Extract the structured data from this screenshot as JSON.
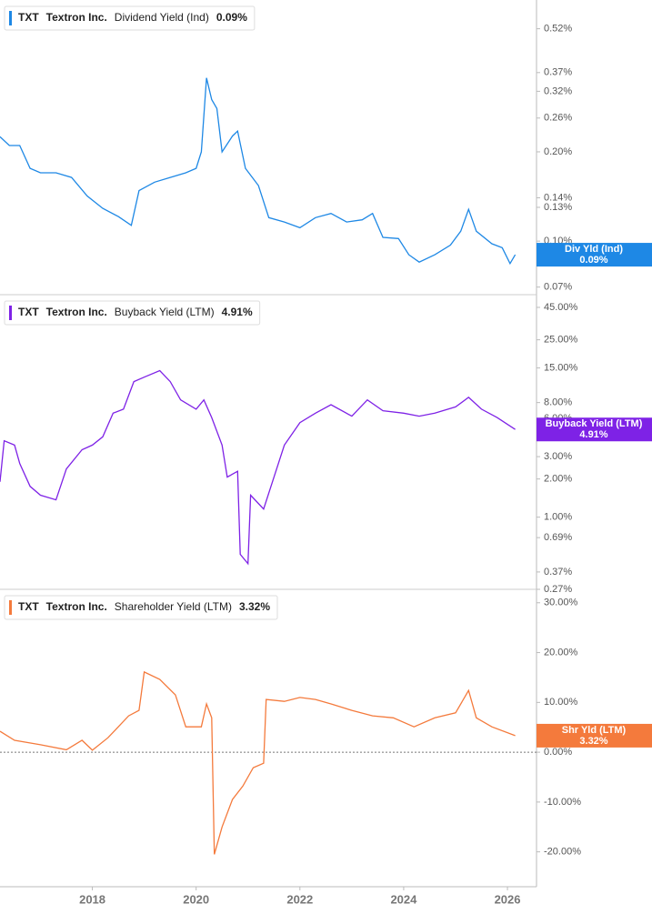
{
  "chart_data": [
    {
      "type": "line",
      "ticker": "TXT",
      "company": "Textron Inc.",
      "log_scale": true,
      "x": [
        2016.22,
        2016.4,
        2016.6,
        2016.8,
        2017.0,
        2017.3,
        2017.6,
        2017.9,
        2018.2,
        2018.5,
        2018.75,
        2018.9,
        2019.2,
        2019.5,
        2019.8,
        2020.0,
        2020.1,
        2020.2,
        2020.3,
        2020.4,
        2020.5,
        2020.7,
        2020.8,
        2020.95,
        2021.2,
        2021.4,
        2021.7,
        2022.0,
        2022.3,
        2022.6,
        2022.9,
        2023.2,
        2023.4,
        2023.6,
        2023.9,
        2024.1,
        2024.3,
        2024.6,
        2024.9,
        2025.1,
        2025.25,
        2025.4,
        2025.7,
        2025.9,
        2026.05,
        2026.15
      ],
      "series": [
        {
          "name": "Dividend Yield (Ind)",
          "short_name": "Div Yld (Ind)",
          "color": "#1e88e5",
          "values": [
            0.225,
            0.21,
            0.21,
            0.176,
            0.17,
            0.17,
            0.164,
            0.142,
            0.129,
            0.121,
            0.113,
            0.148,
            0.158,
            0.164,
            0.17,
            0.176,
            0.2,
            0.355,
            0.3,
            0.28,
            0.2,
            0.226,
            0.235,
            0.176,
            0.154,
            0.12,
            0.116,
            0.111,
            0.12,
            0.124,
            0.116,
            0.118,
            0.124,
            0.103,
            0.102,
            0.09,
            0.085,
            0.09,
            0.097,
            0.108,
            0.128,
            0.108,
            0.098,
            0.095,
            0.084,
            0.09
          ],
          "current_value": 0.09,
          "current_label": "0.09%"
        }
      ],
      "xlim": [
        2016.22,
        2026.56
      ],
      "ylim": [
        0.066,
        0.65
      ],
      "yticks": [
        {
          "value": 0.07,
          "label": "0.07%"
        },
        {
          "value": 0.1,
          "label": "0.10%"
        },
        {
          "value": 0.13,
          "label": "0.13%"
        },
        {
          "value": 0.14,
          "label": "0.14%"
        },
        {
          "value": 0.2,
          "label": "0.20%"
        },
        {
          "value": 0.26,
          "label": "0.26%"
        },
        {
          "value": 0.32,
          "label": "0.32%"
        },
        {
          "value": 0.37,
          "label": "0.37%"
        },
        {
          "value": 0.52,
          "label": "0.52%"
        }
      ]
    },
    {
      "type": "line",
      "ticker": "TXT",
      "company": "Textron Inc.",
      "log_scale": true,
      "x": [
        2016.22,
        2016.3,
        2016.5,
        2016.6,
        2016.8,
        2017.0,
        2017.3,
        2017.5,
        2017.8,
        2018.0,
        2018.2,
        2018.4,
        2018.6,
        2018.8,
        2019.0,
        2019.3,
        2019.5,
        2019.7,
        2020.0,
        2020.15,
        2020.3,
        2020.5,
        2020.6,
        2020.8,
        2020.85,
        2021.0,
        2021.05,
        2021.3,
        2021.5,
        2021.7,
        2022.0,
        2022.3,
        2022.6,
        2023.0,
        2023.3,
        2023.6,
        2024.0,
        2024.3,
        2024.6,
        2025.0,
        2025.25,
        2025.5,
        2025.8,
        2026.15
      ],
      "series": [
        {
          "name": "Buyback Yield (LTM)",
          "short_name": "Buyback Yield (LTM)",
          "color": "#7e22e6",
          "values": [
            1.9,
            4.0,
            3.7,
            2.65,
            1.75,
            1.49,
            1.37,
            2.4,
            3.4,
            3.7,
            4.3,
            6.6,
            7.1,
            11.7,
            12.7,
            14.3,
            11.7,
            8.4,
            7.1,
            8.4,
            6.1,
            3.7,
            2.07,
            2.3,
            0.51,
            0.43,
            1.49,
            1.16,
            2.07,
            3.7,
            5.56,
            6.6,
            7.7,
            6.25,
            8.4,
            6.9,
            6.6,
            6.25,
            6.6,
            7.4,
            8.8,
            7.1,
            6.1,
            4.91
          ],
          "current_value": 4.91,
          "current_label": "4.91%"
        }
      ],
      "xlim": [
        2016.22,
        2026.56
      ],
      "ylim": [
        0.27,
        56.7
      ],
      "yticks": [
        {
          "value": 0.27,
          "label": "0.27%"
        },
        {
          "value": 0.37,
          "label": "0.37%"
        },
        {
          "value": 0.69,
          "label": "0.69%"
        },
        {
          "value": 1,
          "label": "1.00%"
        },
        {
          "value": 2,
          "label": "2.00%"
        },
        {
          "value": 3,
          "label": "3.00%"
        },
        {
          "value": 6,
          "label": "6.00%"
        },
        {
          "value": 8,
          "label": "8.00%"
        },
        {
          "value": 15,
          "label": "15.00%"
        },
        {
          "value": 25,
          "label": "25.00%"
        },
        {
          "value": 45,
          "label": "45.00%"
        }
      ]
    },
    {
      "type": "line",
      "ticker": "TXT",
      "company": "Textron Inc.",
      "log_scale": false,
      "zero_line": true,
      "x": [
        2016.22,
        2016.5,
        2017.0,
        2017.5,
        2017.8,
        2018.0,
        2018.3,
        2018.5,
        2018.7,
        2018.9,
        2019.0,
        2019.3,
        2019.6,
        2019.8,
        2020.1,
        2020.2,
        2020.3,
        2020.35,
        2020.5,
        2020.7,
        2020.9,
        2021.1,
        2021.3,
        2021.35,
        2021.7,
        2022.0,
        2022.3,
        2022.6,
        2023.0,
        2023.4,
        2023.8,
        2024.2,
        2024.6,
        2025.0,
        2025.25,
        2025.4,
        2025.7,
        2026.15
      ],
      "series": [
        {
          "name": "Shareholder Yield (LTM)",
          "short_name": "Shr Yld (LTM)",
          "color": "#f47a3c",
          "values": [
            4.2,
            2.4,
            1.5,
            0.5,
            2.4,
            0.4,
            2.9,
            5.1,
            7.3,
            8.4,
            16.1,
            14.6,
            11.5,
            5.1,
            5.1,
            9.7,
            6.9,
            -20.5,
            -15,
            -9.5,
            -6.8,
            -3.1,
            -2.2,
            10.6,
            10.2,
            11,
            10.6,
            9.7,
            8.4,
            7.3,
            6.9,
            5.1,
            6.9,
            7.9,
            12.4,
            6.9,
            5.1,
            3.32
          ],
          "current_value": 3.32,
          "current_label": "3.32%"
        }
      ],
      "xlim": [
        2016.22,
        2026.56
      ],
      "ylim": [
        -27,
        32.7
      ],
      "yticks": [
        {
          "value": -20,
          "label": "-20.00%"
        },
        {
          "value": -10,
          "label": "-10.00%"
        },
        {
          "value": 0,
          "label": "0.00%"
        },
        {
          "value": 10,
          "label": "10.00%"
        },
        {
          "value": 20,
          "label": "20.00%"
        },
        {
          "value": 30,
          "label": "30.00%"
        }
      ],
      "xticks": [
        2018,
        2020,
        2022,
        2024,
        2026
      ]
    }
  ]
}
